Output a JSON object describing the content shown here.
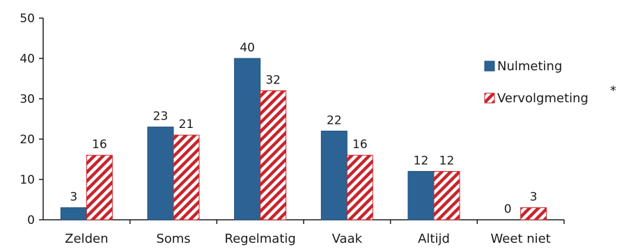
{
  "chart_data": {
    "type": "bar",
    "title": "",
    "xlabel": "",
    "ylabel": "",
    "categories": [
      "Zelden",
      "Soms",
      "Regelmatig",
      "Vaak",
      "Altijd",
      "Weet niet"
    ],
    "series": [
      {
        "name": "Nulmeting",
        "values": [
          3,
          23,
          40,
          22,
          12,
          0
        ],
        "color": "#2b6494",
        "pattern": "solid"
      },
      {
        "name": "Vervolgmeting",
        "values": [
          16,
          21,
          32,
          16,
          12,
          3
        ],
        "color": "#c8252d",
        "pattern": "diagonal-stripes"
      }
    ],
    "ylim": [
      0,
      50
    ],
    "yticks": [
      0,
      10,
      20,
      30,
      40,
      50
    ],
    "grid": false,
    "legend_position": "right",
    "legend_note": "*"
  }
}
